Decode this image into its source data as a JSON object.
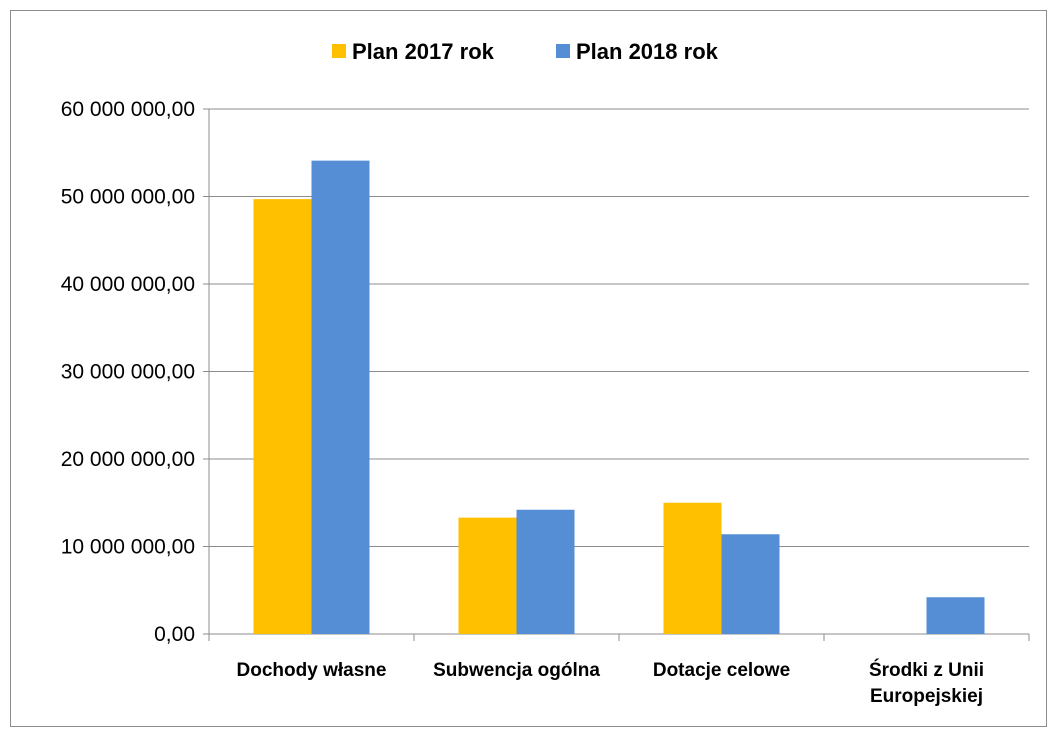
{
  "chart_data": {
    "type": "bar",
    "categories": [
      "Dochody własne",
      "Subwencja ogólna",
      "Dotacje celowe",
      "Środki z Unii Europejskiej"
    ],
    "category_lines": [
      [
        "Dochody własne"
      ],
      [
        "Subwencja ogólna"
      ],
      [
        "Dotacje celowe"
      ],
      [
        "Środki z Unii",
        "Europejskiej"
      ]
    ],
    "series": [
      {
        "name": "Plan 2017 rok",
        "color": "#FFC000",
        "values": [
          49700000,
          13300000,
          15000000,
          0
        ]
      },
      {
        "name": "Plan 2018 rok",
        "color": "#558ED5",
        "values": [
          54100000,
          14200000,
          11400000,
          4200000
        ]
      }
    ],
    "ylim": [
      0,
      60000000
    ],
    "yticks": [
      0,
      10000000,
      20000000,
      30000000,
      40000000,
      50000000,
      60000000
    ],
    "ytick_labels": [
      "0,00",
      "10 000 000,00",
      "20 000 000,00",
      "30 000 000,00",
      "40 000 000,00",
      "50 000 000,00",
      "60 000 000,00"
    ],
    "grid": true,
    "legend_position": "top",
    "title": "",
    "xlabel": "",
    "ylabel": ""
  }
}
